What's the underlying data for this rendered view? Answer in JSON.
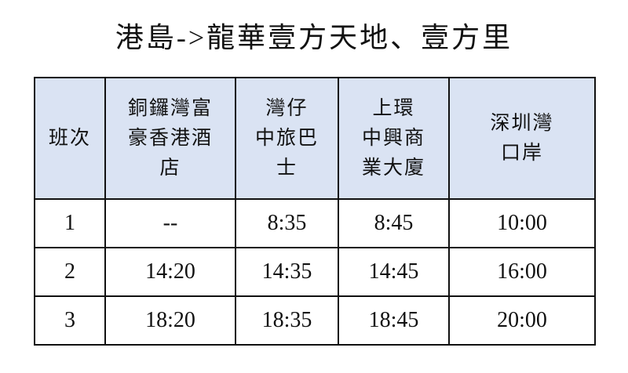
{
  "title": "港島->龍華壹方天地、壹方里",
  "colors": {
    "header_bg": "#dae3f3",
    "border": "#111111"
  },
  "table": {
    "headers": [
      [
        "班次"
      ],
      [
        "銅鑼灣富",
        "豪香港酒",
        "店"
      ],
      [
        "灣仔",
        "中旅巴",
        "士"
      ],
      [
        "上環",
        "中興商",
        "業大廈"
      ],
      [
        "深圳灣",
        "口岸"
      ]
    ],
    "rows": [
      [
        "1",
        "--",
        "8:35",
        "8:45",
        "10:00"
      ],
      [
        "2",
        "14:20",
        "14:35",
        "14:45",
        "16:00"
      ],
      [
        "3",
        "18:20",
        "18:35",
        "18:45",
        "20:00"
      ]
    ]
  }
}
